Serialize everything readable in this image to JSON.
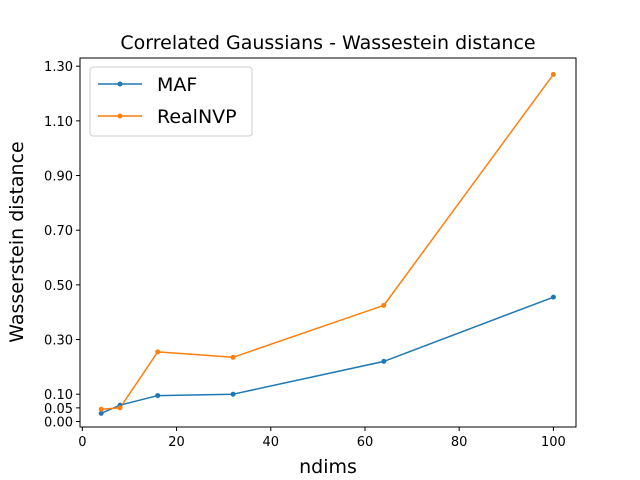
{
  "chart_data": {
    "type": "line",
    "title": "Correlated Gaussians - Wassestein distance",
    "xlabel": "ndims",
    "ylabel": "Wasserstein distance",
    "xlim": [
      -0.5,
      104.8
    ],
    "ylim": [
      -0.02,
      1.33
    ],
    "xticks": [
      0,
      20,
      40,
      60,
      80,
      100
    ],
    "xtick_labels": [
      "0",
      "20",
      "40",
      "60",
      "80",
      "100"
    ],
    "yticks": [
      0.0,
      0.05,
      0.1,
      0.3,
      0.5,
      0.7,
      0.9,
      1.1,
      1.3
    ],
    "ytick_labels": [
      "0.00",
      "0.05",
      "0.10",
      "0.30",
      "0.50",
      "0.70",
      "0.90",
      "1.10",
      "1.30"
    ],
    "legend_position": "top-left",
    "grid": false,
    "x": [
      4,
      8,
      16,
      32,
      64,
      100
    ],
    "series": [
      {
        "name": "MAF",
        "color": "#1f77b4",
        "values": [
          0.03,
          0.06,
          0.095,
          0.1,
          0.22,
          0.455
        ]
      },
      {
        "name": "RealNVP",
        "color": "#ff7f0e",
        "values": [
          0.045,
          0.05,
          0.255,
          0.235,
          0.425,
          1.27
        ]
      }
    ]
  }
}
